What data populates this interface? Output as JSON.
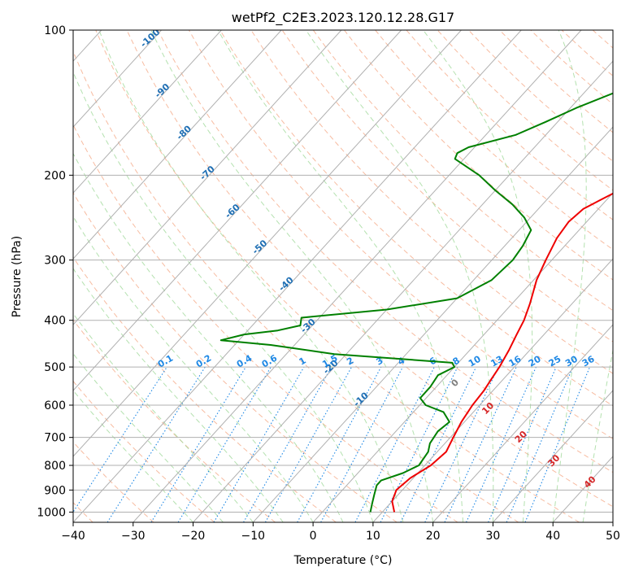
{
  "chart_data": {
    "type": "skew-t",
    "title": "wetPf2_C2E3.2023.120.12.28.G17",
    "xlabel": "Temperature (°C)",
    "ylabel": "Pressure (hPa)",
    "xlim": [
      -40,
      50
    ],
    "ylim": [
      1050,
      100
    ],
    "x_ticks": [
      -40,
      -30,
      -20,
      -10,
      0,
      10,
      20,
      30,
      40,
      50
    ],
    "y_ticks": [
      100,
      200,
      300,
      400,
      500,
      600,
      700,
      800,
      900,
      1000
    ],
    "grid": true,
    "colors": {
      "temperature": "#ee0000",
      "dewpoint": "#008000",
      "isotherm_labels": "#1f6fb4",
      "mixing_ratio": "#1e88e5",
      "theta_e_labels": "#d62728",
      "theta_e_gray_label": "#808080",
      "dry_adiabat": "#f4a582",
      "moist_adiabat": "#a1d99b"
    },
    "isotherm_labels": [
      {
        "value": -100,
        "text": "-100"
      },
      {
        "value": -90,
        "text": "-90"
      },
      {
        "value": -80,
        "text": "-80"
      },
      {
        "value": -70,
        "text": "-70"
      },
      {
        "value": -60,
        "text": "-60"
      },
      {
        "value": -50,
        "text": "-50"
      },
      {
        "value": -40,
        "text": "-40"
      },
      {
        "value": -30,
        "text": "-30"
      },
      {
        "value": -20,
        "text": "-20"
      },
      {
        "value": -10,
        "text": "-10"
      }
    ],
    "mixing_ratio_labels": [
      {
        "value": 0.1,
        "text": "0.1"
      },
      {
        "value": 0.2,
        "text": "0.2"
      },
      {
        "value": 0.4,
        "text": "0.4"
      },
      {
        "value": 0.6,
        "text": "0.6"
      },
      {
        "value": 1,
        "text": "1"
      },
      {
        "value": 1.5,
        "text": "1.5"
      },
      {
        "value": 2,
        "text": "2"
      },
      {
        "value": 3,
        "text": "3"
      },
      {
        "value": 4,
        "text": "4"
      },
      {
        "value": 6,
        "text": "6"
      },
      {
        "value": 8,
        "text": "8"
      },
      {
        "value": 10,
        "text": "10"
      },
      {
        "value": 13,
        "text": "13"
      },
      {
        "value": 16,
        "text": "16"
      },
      {
        "value": 20,
        "text": "20"
      },
      {
        "value": 25,
        "text": "25"
      },
      {
        "value": 30,
        "text": "30"
      },
      {
        "value": 36,
        "text": "36"
      }
    ],
    "theta_e_labels": [
      {
        "text": "0",
        "p": 545,
        "t": 24,
        "color": "gray"
      },
      {
        "text": "10",
        "p": 615,
        "t": 29.5,
        "color": "red"
      },
      {
        "text": "20",
        "p": 705,
        "t": 35,
        "color": "red"
      },
      {
        "text": "30",
        "p": 790,
        "t": 40.5,
        "color": "red"
      },
      {
        "text": "40",
        "p": 875,
        "t": 46.5,
        "color": "red"
      }
    ],
    "series": [
      {
        "name": "",
        "role": "temperature",
        "points": [
          [
            100,
            23
          ],
          [
            110,
            19.5
          ],
          [
            125,
            15
          ],
          [
            140,
            14
          ],
          [
            150,
            13.5
          ],
          [
            165,
            11
          ],
          [
            180,
            8
          ],
          [
            195,
            4.5
          ],
          [
            210,
            1.5
          ],
          [
            225,
            -1
          ],
          [
            235,
            -2.5
          ],
          [
            250,
            -3
          ],
          [
            270,
            -2.5
          ],
          [
            300,
            -1
          ],
          [
            330,
            0.5
          ],
          [
            370,
            3
          ],
          [
            400,
            4.5
          ],
          [
            430,
            5.5
          ],
          [
            460,
            6.5
          ],
          [
            480,
            7
          ],
          [
            500,
            7.5
          ],
          [
            530,
            8
          ],
          [
            560,
            8.5
          ],
          [
            600,
            8.8
          ],
          [
            650,
            9.5
          ],
          [
            700,
            10.5
          ],
          [
            750,
            11.5
          ],
          [
            800,
            11
          ],
          [
            850,
            9.5
          ],
          [
            900,
            9
          ],
          [
            950,
            10
          ],
          [
            1000,
            12
          ]
        ]
      },
      {
        "name": "",
        "role": "dewpoint",
        "points": [
          [
            100,
            -1
          ],
          [
            115,
            -5
          ],
          [
            125,
            -8
          ],
          [
            135,
            -15
          ],
          [
            145,
            -19
          ],
          [
            155,
            -22
          ],
          [
            165,
            -25
          ],
          [
            175,
            -31
          ],
          [
            180,
            -32
          ],
          [
            185,
            -31.5
          ],
          [
            200,
            -25
          ],
          [
            215,
            -20
          ],
          [
            230,
            -15
          ],
          [
            245,
            -11
          ],
          [
            260,
            -8
          ],
          [
            280,
            -7
          ],
          [
            300,
            -6.5
          ],
          [
            330,
            -7
          ],
          [
            360,
            -10
          ],
          [
            380,
            -20
          ],
          [
            395,
            -33
          ],
          [
            410,
            -32
          ],
          [
            420,
            -35
          ],
          [
            428,
            -40
          ],
          [
            440,
            -43
          ],
          [
            450,
            -34
          ],
          [
            470,
            -22
          ],
          [
            490,
            -1
          ],
          [
            500,
            0
          ],
          [
            520,
            -1.5
          ],
          [
            550,
            -1
          ],
          [
            580,
            -1
          ],
          [
            600,
            1
          ],
          [
            620,
            5
          ],
          [
            650,
            7.5
          ],
          [
            680,
            7
          ],
          [
            720,
            7.5
          ],
          [
            750,
            8.5
          ],
          [
            800,
            9
          ],
          [
            830,
            7.5
          ],
          [
            860,
            5
          ],
          [
            880,
            5
          ],
          [
            920,
            6
          ],
          [
            960,
            7
          ],
          [
            1000,
            8
          ]
        ]
      }
    ]
  }
}
